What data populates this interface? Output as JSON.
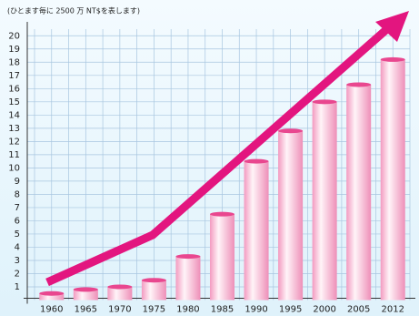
{
  "chart_data": {
    "type": "bar",
    "subtitle": "(ひとます毎に 2500 万 NT$を表します)",
    "categories": [
      "1960",
      "1965",
      "1970",
      "1975",
      "1980",
      "1985",
      "1990",
      "1995",
      "2000",
      "2005",
      "2012"
    ],
    "values": [
      0.5,
      0.8,
      1.0,
      1.5,
      3.3,
      6.5,
      10.5,
      12.8,
      15.0,
      16.3,
      18.2
    ],
    "color": "#f7b9d3",
    "ylim": [
      0,
      20.5
    ],
    "yticks": [
      1,
      2,
      3,
      4,
      5,
      6,
      7,
      8,
      9,
      10,
      11,
      12,
      13,
      14,
      15,
      16,
      17,
      18,
      19,
      20
    ],
    "grid": true
  }
}
